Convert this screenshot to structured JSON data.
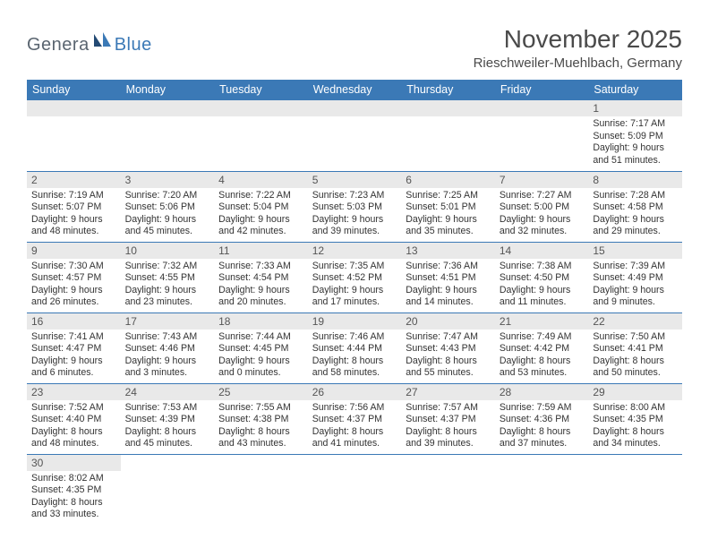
{
  "logo": {
    "text1": "Genera",
    "text2": "Blue"
  },
  "title": "November 2025",
  "location": "Rieschweiler-Muehlbach, Germany",
  "colors": {
    "header_bg": "#3b79b6",
    "header_text": "#ffffff",
    "daynum_bg": "#e9e9e9",
    "row_border": "#3b79b6",
    "logo_gray": "#5a6570",
    "logo_blue": "#3b79b6"
  },
  "fonts": {
    "title_size": 28,
    "location_size": 15,
    "dayhead_size": 12.5,
    "daynum_size": 12,
    "cell_size": 10.6
  },
  "day_headers": [
    "Sunday",
    "Monday",
    "Tuesday",
    "Wednesday",
    "Thursday",
    "Friday",
    "Saturday"
  ],
  "weeks": [
    [
      null,
      null,
      null,
      null,
      null,
      null,
      {
        "n": "1",
        "sunrise": "Sunrise: 7:17 AM",
        "sunset": "Sunset: 5:09 PM",
        "daylight1": "Daylight: 9 hours",
        "daylight2": "and 51 minutes."
      }
    ],
    [
      {
        "n": "2",
        "sunrise": "Sunrise: 7:19 AM",
        "sunset": "Sunset: 5:07 PM",
        "daylight1": "Daylight: 9 hours",
        "daylight2": "and 48 minutes."
      },
      {
        "n": "3",
        "sunrise": "Sunrise: 7:20 AM",
        "sunset": "Sunset: 5:06 PM",
        "daylight1": "Daylight: 9 hours",
        "daylight2": "and 45 minutes."
      },
      {
        "n": "4",
        "sunrise": "Sunrise: 7:22 AM",
        "sunset": "Sunset: 5:04 PM",
        "daylight1": "Daylight: 9 hours",
        "daylight2": "and 42 minutes."
      },
      {
        "n": "5",
        "sunrise": "Sunrise: 7:23 AM",
        "sunset": "Sunset: 5:03 PM",
        "daylight1": "Daylight: 9 hours",
        "daylight2": "and 39 minutes."
      },
      {
        "n": "6",
        "sunrise": "Sunrise: 7:25 AM",
        "sunset": "Sunset: 5:01 PM",
        "daylight1": "Daylight: 9 hours",
        "daylight2": "and 35 minutes."
      },
      {
        "n": "7",
        "sunrise": "Sunrise: 7:27 AM",
        "sunset": "Sunset: 5:00 PM",
        "daylight1": "Daylight: 9 hours",
        "daylight2": "and 32 minutes."
      },
      {
        "n": "8",
        "sunrise": "Sunrise: 7:28 AM",
        "sunset": "Sunset: 4:58 PM",
        "daylight1": "Daylight: 9 hours",
        "daylight2": "and 29 minutes."
      }
    ],
    [
      {
        "n": "9",
        "sunrise": "Sunrise: 7:30 AM",
        "sunset": "Sunset: 4:57 PM",
        "daylight1": "Daylight: 9 hours",
        "daylight2": "and 26 minutes."
      },
      {
        "n": "10",
        "sunrise": "Sunrise: 7:32 AM",
        "sunset": "Sunset: 4:55 PM",
        "daylight1": "Daylight: 9 hours",
        "daylight2": "and 23 minutes."
      },
      {
        "n": "11",
        "sunrise": "Sunrise: 7:33 AM",
        "sunset": "Sunset: 4:54 PM",
        "daylight1": "Daylight: 9 hours",
        "daylight2": "and 20 minutes."
      },
      {
        "n": "12",
        "sunrise": "Sunrise: 7:35 AM",
        "sunset": "Sunset: 4:52 PM",
        "daylight1": "Daylight: 9 hours",
        "daylight2": "and 17 minutes."
      },
      {
        "n": "13",
        "sunrise": "Sunrise: 7:36 AM",
        "sunset": "Sunset: 4:51 PM",
        "daylight1": "Daylight: 9 hours",
        "daylight2": "and 14 minutes."
      },
      {
        "n": "14",
        "sunrise": "Sunrise: 7:38 AM",
        "sunset": "Sunset: 4:50 PM",
        "daylight1": "Daylight: 9 hours",
        "daylight2": "and 11 minutes."
      },
      {
        "n": "15",
        "sunrise": "Sunrise: 7:39 AM",
        "sunset": "Sunset: 4:49 PM",
        "daylight1": "Daylight: 9 hours",
        "daylight2": "and 9 minutes."
      }
    ],
    [
      {
        "n": "16",
        "sunrise": "Sunrise: 7:41 AM",
        "sunset": "Sunset: 4:47 PM",
        "daylight1": "Daylight: 9 hours",
        "daylight2": "and 6 minutes."
      },
      {
        "n": "17",
        "sunrise": "Sunrise: 7:43 AM",
        "sunset": "Sunset: 4:46 PM",
        "daylight1": "Daylight: 9 hours",
        "daylight2": "and 3 minutes."
      },
      {
        "n": "18",
        "sunrise": "Sunrise: 7:44 AM",
        "sunset": "Sunset: 4:45 PM",
        "daylight1": "Daylight: 9 hours",
        "daylight2": "and 0 minutes."
      },
      {
        "n": "19",
        "sunrise": "Sunrise: 7:46 AM",
        "sunset": "Sunset: 4:44 PM",
        "daylight1": "Daylight: 8 hours",
        "daylight2": "and 58 minutes."
      },
      {
        "n": "20",
        "sunrise": "Sunrise: 7:47 AM",
        "sunset": "Sunset: 4:43 PM",
        "daylight1": "Daylight: 8 hours",
        "daylight2": "and 55 minutes."
      },
      {
        "n": "21",
        "sunrise": "Sunrise: 7:49 AM",
        "sunset": "Sunset: 4:42 PM",
        "daylight1": "Daylight: 8 hours",
        "daylight2": "and 53 minutes."
      },
      {
        "n": "22",
        "sunrise": "Sunrise: 7:50 AM",
        "sunset": "Sunset: 4:41 PM",
        "daylight1": "Daylight: 8 hours",
        "daylight2": "and 50 minutes."
      }
    ],
    [
      {
        "n": "23",
        "sunrise": "Sunrise: 7:52 AM",
        "sunset": "Sunset: 4:40 PM",
        "daylight1": "Daylight: 8 hours",
        "daylight2": "and 48 minutes."
      },
      {
        "n": "24",
        "sunrise": "Sunrise: 7:53 AM",
        "sunset": "Sunset: 4:39 PM",
        "daylight1": "Daylight: 8 hours",
        "daylight2": "and 45 minutes."
      },
      {
        "n": "25",
        "sunrise": "Sunrise: 7:55 AM",
        "sunset": "Sunset: 4:38 PM",
        "daylight1": "Daylight: 8 hours",
        "daylight2": "and 43 minutes."
      },
      {
        "n": "26",
        "sunrise": "Sunrise: 7:56 AM",
        "sunset": "Sunset: 4:37 PM",
        "daylight1": "Daylight: 8 hours",
        "daylight2": "and 41 minutes."
      },
      {
        "n": "27",
        "sunrise": "Sunrise: 7:57 AM",
        "sunset": "Sunset: 4:37 PM",
        "daylight1": "Daylight: 8 hours",
        "daylight2": "and 39 minutes."
      },
      {
        "n": "28",
        "sunrise": "Sunrise: 7:59 AM",
        "sunset": "Sunset: 4:36 PM",
        "daylight1": "Daylight: 8 hours",
        "daylight2": "and 37 minutes."
      },
      {
        "n": "29",
        "sunrise": "Sunrise: 8:00 AM",
        "sunset": "Sunset: 4:35 PM",
        "daylight1": "Daylight: 8 hours",
        "daylight2": "and 34 minutes."
      }
    ],
    [
      {
        "n": "30",
        "sunrise": "Sunrise: 8:02 AM",
        "sunset": "Sunset: 4:35 PM",
        "daylight1": "Daylight: 8 hours",
        "daylight2": "and 33 minutes."
      },
      null,
      null,
      null,
      null,
      null,
      null
    ]
  ]
}
